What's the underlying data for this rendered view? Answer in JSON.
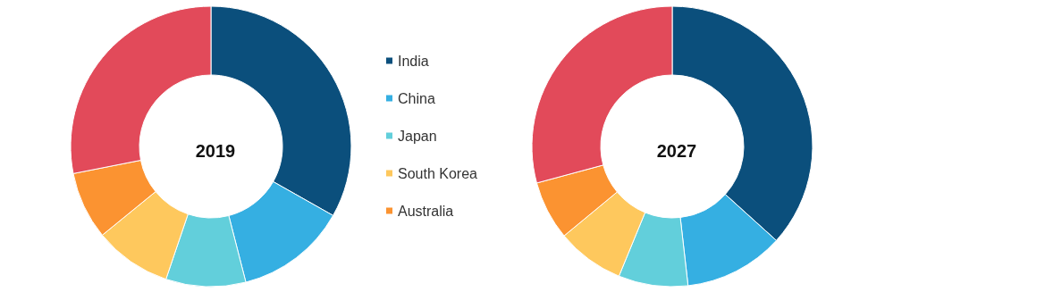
{
  "chart_data": {
    "type": "donut",
    "categories": [
      "India",
      "China",
      "Japan",
      "South Korea",
      "Australia",
      null
    ],
    "colors": [
      "#0b4f7c",
      "#35afe2",
      "#62cfdb",
      "#fec85d",
      "#fb9331",
      "#e24a5a"
    ],
    "legend": "right",
    "series": [
      {
        "name": "2019",
        "values": [
          33.2,
          12.8,
          9.2,
          8.9,
          7.8,
          28.1
        ]
      },
      {
        "name": "2027",
        "values": [
          36.7,
          11.5,
          8.0,
          7.8,
          6.8,
          29.2
        ]
      }
    ]
  }
}
